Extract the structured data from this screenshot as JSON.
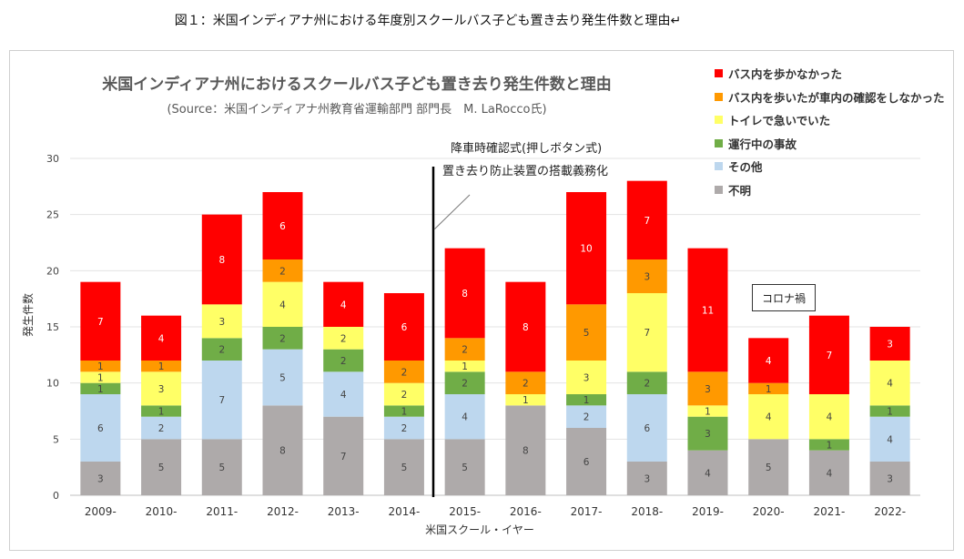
{
  "caption": "図１：米国インディアナ州における年度別スクールバス子ども置き去り発生件数と理由↵",
  "chart_data": {
    "type": "bar",
    "stacked": true,
    "title": "米国インディアナ州におけるスクールバス子ども置き去り発生件数と理由",
    "subtitle": "(Source：米国インディアナ州教育省運輸部門 部門長　M. LaRocco氏)",
    "xlabel": "米国スクール・イヤー",
    "ylabel": "発生件数",
    "ylim": [
      0,
      30
    ],
    "yticks": [
      0,
      5,
      10,
      15,
      20,
      25,
      30
    ],
    "legend_position": "top-right",
    "categories": [
      "2009-",
      "2010-",
      "2011-",
      "2012-",
      "2013-",
      "2014-",
      "2015-",
      "2016-",
      "2017-",
      "2018-",
      "2019-",
      "2020-",
      "2021-",
      "2022-"
    ],
    "series": [
      {
        "name": "不明",
        "color": "#aeaaaa",
        "values": [
          3,
          5,
          5,
          8,
          7,
          5,
          5,
          8,
          6,
          3,
          4,
          5,
          4,
          3
        ]
      },
      {
        "name": "その他",
        "color": "#bdd7ee",
        "values": [
          6,
          2,
          7,
          5,
          4,
          2,
          4,
          0,
          2,
          6,
          0,
          0,
          0,
          4
        ]
      },
      {
        "name": "運行中の事故",
        "color": "#70ad47",
        "values": [
          1,
          1,
          2,
          2,
          2,
          1,
          2,
          0,
          1,
          2,
          3,
          0,
          1,
          1
        ]
      },
      {
        "name": "トイレで急いでいた",
        "color": "#ffff66",
        "values": [
          1,
          3,
          3,
          4,
          2,
          2,
          1,
          1,
          3,
          7,
          1,
          4,
          4,
          4
        ]
      },
      {
        "name": "バス内を歩いたが車内の確認をしなかった",
        "color": "#ff9900",
        "values": [
          1,
          1,
          0,
          2,
          0,
          2,
          2,
          2,
          5,
          3,
          3,
          1,
          0,
          0
        ]
      },
      {
        "name": "バス内を歩かなかった",
        "color": "#ff0000",
        "values": [
          7,
          4,
          8,
          6,
          4,
          6,
          8,
          8,
          10,
          7,
          11,
          4,
          7,
          3
        ]
      }
    ],
    "annotations": {
      "divider_line1": "降車時確認式(押しボタン式)",
      "divider_line2": "置き去り防止装置の搭載義務化",
      "corona": "コロナ禍"
    }
  }
}
